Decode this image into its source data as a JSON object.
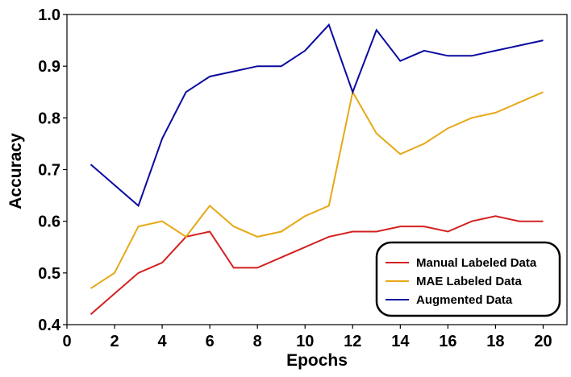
{
  "chart_data": {
    "type": "line",
    "title": "",
    "xlabel": "Epochs",
    "ylabel": "Accuracy",
    "xlim": [
      0,
      21
    ],
    "ylim": [
      0.4,
      1.0
    ],
    "xticks": [
      0,
      2,
      4,
      6,
      8,
      10,
      12,
      14,
      16,
      18,
      20
    ],
    "xtick_labels": [
      "0",
      "2",
      "4",
      "6",
      "8",
      "10",
      "12",
      "14",
      "16",
      "18",
      "20"
    ],
    "yticks": [
      0.4,
      0.5,
      0.6,
      0.7,
      0.8,
      0.9,
      1.0
    ],
    "ytick_labels": [
      "0.4",
      "0.5",
      "0.6",
      "0.7",
      "0.8",
      "0.9",
      "1.0"
    ],
    "grid": false,
    "legend_position": "bottom-right",
    "x": [
      1,
      2,
      3,
      4,
      5,
      6,
      7,
      8,
      9,
      10,
      11,
      12,
      13,
      14,
      15,
      16,
      17,
      18,
      19,
      20
    ],
    "series": [
      {
        "name": "Manual Labeled Data",
        "color": "#d42020",
        "values": [
          0.42,
          0.46,
          0.5,
          0.52,
          0.57,
          0.58,
          0.51,
          0.51,
          0.53,
          0.55,
          0.57,
          0.58,
          0.58,
          0.59,
          0.59,
          0.58,
          0.6,
          0.61,
          0.6,
          0.6
        ]
      },
      {
        "name": "MAE Labeled Data",
        "color": "#e6a817",
        "values": [
          0.47,
          0.5,
          0.59,
          0.6,
          0.57,
          0.63,
          0.59,
          0.57,
          0.58,
          0.61,
          0.63,
          0.85,
          0.77,
          0.73,
          0.75,
          0.78,
          0.8,
          0.81,
          0.83,
          0.85
        ]
      },
      {
        "name": "Augmented Data",
        "color": "#0a0aa0",
        "values": [
          0.71,
          0.67,
          0.63,
          0.76,
          0.85,
          0.88,
          0.89,
          0.9,
          0.9,
          0.93,
          0.98,
          0.85,
          0.97,
          0.91,
          0.93,
          0.92,
          0.92,
          0.93,
          0.94,
          0.95
        ]
      }
    ]
  }
}
